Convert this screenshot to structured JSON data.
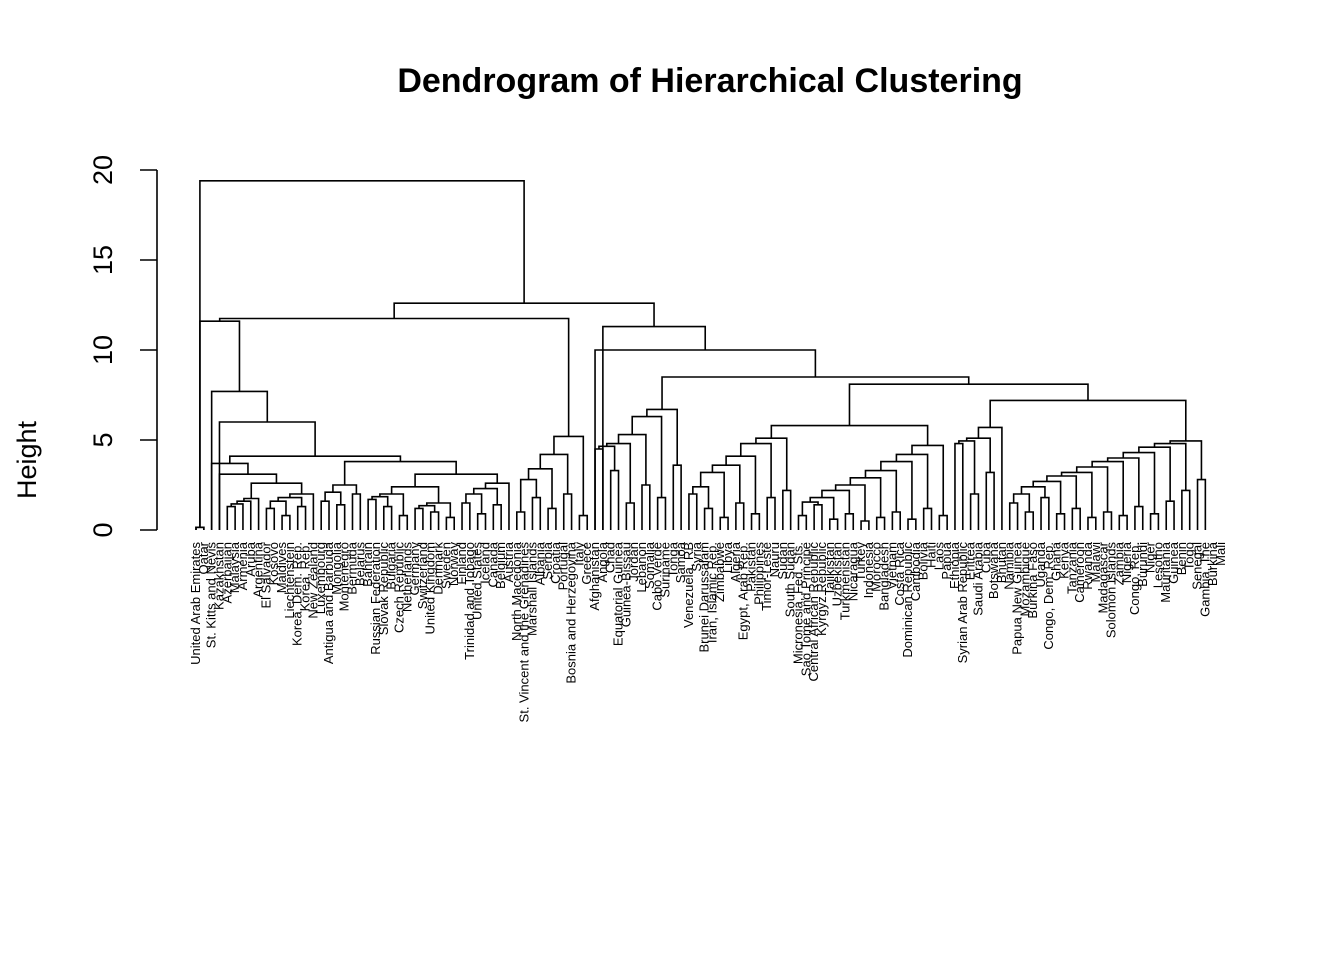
{
  "chart_data": {
    "type": "dendrogram",
    "title": "Dendrogram of Hierarchical Clustering",
    "xlabel": "",
    "ylabel": "Height",
    "ylim": [
      0,
      20
    ],
    "yticks": [
      0,
      5,
      10,
      15,
      20
    ],
    "ytick_labels": [
      "0",
      "5",
      "10",
      "15",
      "20"
    ],
    "grid": false,
    "legend": "none",
    "line_color": "#000000",
    "leaves": [
      "United Arab Emirates",
      "Qatar",
      "St. Kitts and Nevis",
      "Kazakhstan",
      "Azerbaijan",
      "Malaysia",
      "Armenia",
      "Aruba",
      "Argentina",
      "El Salvador",
      "Kosovo",
      "Maldives",
      "Liechtenstein",
      "Korea, Dem. Rep.",
      "Korea, Rep.",
      "New Zealand",
      "Luxembourg",
      "Antigua and Barbuda",
      "Mongolia",
      "Montenegro",
      "Bermuda",
      "Belarus",
      "Bahrain",
      "Russian Federation",
      "Slovak Republic",
      "Bulgaria",
      "Czech Republic",
      "Netherlands",
      "Germany",
      "Switzerland",
      "United Kingdom",
      "Denmark",
      "Sweden",
      "Norway",
      "Finland",
      "Trinidad and Tobago",
      "United States",
      "Iceland",
      "Canada",
      "Belgium",
      "Austria",
      "North Macedonia",
      "St. Vincent and the Grenadines",
      "Marshall Islands",
      "Albania",
      "Serbia",
      "Croatia",
      "Portugal",
      "Bosnia and Herzegovina",
      "Italy",
      "Greece",
      "Afghanistan",
      "Angola",
      "Chad",
      "Equatorial Guinea",
      "Guinea-Bissau",
      "Jordan",
      "Lebanon",
      "Somalia",
      "Cabo Verde",
      "Suriname",
      "Tonga",
      "Samoa",
      "Venezuela, RB",
      "Syria",
      "Brunei Darussalam",
      "Iran, Islamic Rep.",
      "Zimbabwe",
      "Libya",
      "Algeria",
      "Egypt, Arab Rep.",
      "Pakistan",
      "Philippines",
      "Timor-Leste",
      "Nauru",
      "Sudan",
      "South Sudan",
      "Micronesia, Fed. Sts.",
      "Sao Tome and Principe",
      "Central African Republic",
      "Kyrgyz Republic",
      "Tajikistan",
      "Uzbekistan",
      "Turkmenistan",
      "Nicaragua",
      "Turkey",
      "Indonesia",
      "Morocco",
      "Bangladesh",
      "Vietnam",
      "Costa Rica",
      "Dominican Republic",
      "Cambodia",
      "Bolivia",
      "Haiti",
      "Laos",
      "Papua",
      "Ethiopia",
      "Syrian Arab Republic",
      "Eritrea",
      "Saudi Arabia",
      "Cuba",
      "Botswana",
      "Bhutan",
      "Namibia",
      "Papua New Guinea",
      "Mozambique",
      "Burkina Faso",
      "Uganda",
      "Congo, Dem. Rep.",
      "Ghana",
      "Kenya",
      "Tanzania",
      "Cameroon",
      "Rwanda",
      "Malawi",
      "Madagascar",
      "Solomon Islands",
      "Zambia",
      "Nigeria",
      "Congo, Rep.",
      "Burundi",
      "Niger",
      "Lesotho",
      "Mauritania",
      "Guinea",
      "Benin",
      "Togo",
      "Senegal",
      "Gambia, The",
      "Burkina",
      "Mali"
    ]
  }
}
